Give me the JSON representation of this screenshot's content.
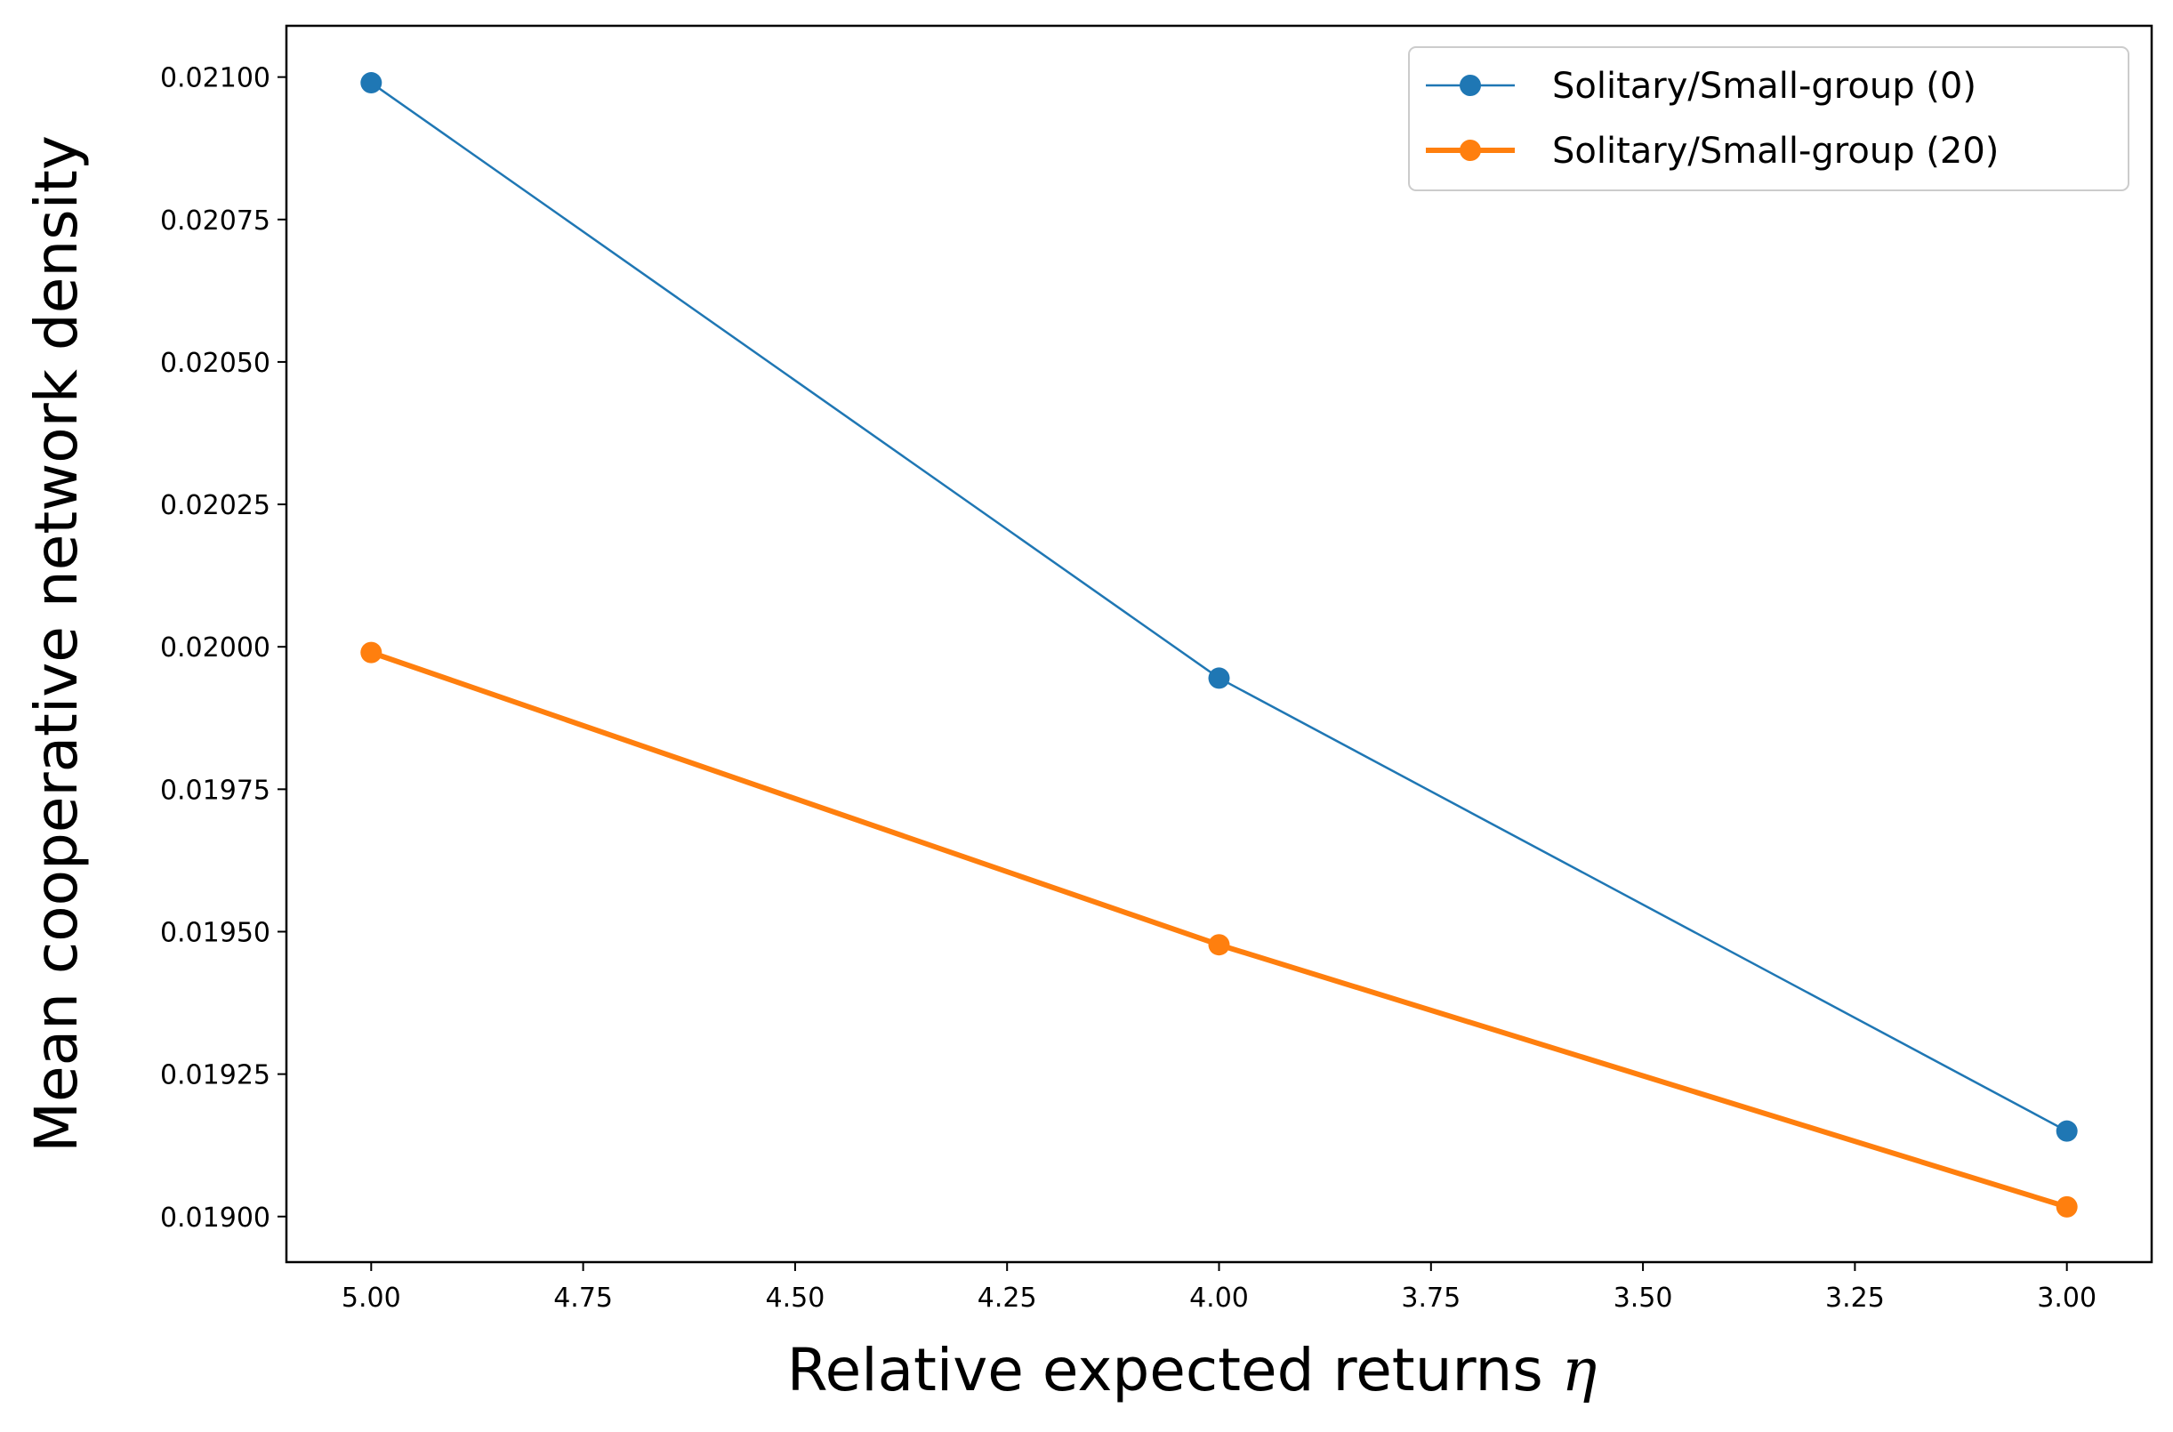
{
  "chart_data": {
    "type": "line",
    "xlabel": "Relative expected returns",
    "xlabel_symbol": "η",
    "ylabel": "Mean cooperative network density",
    "x": [
      5.0,
      4.0,
      3.0
    ],
    "xlim": [
      5.1,
      2.9
    ],
    "ylim": [
      0.01892,
      0.02109
    ],
    "xticks": [
      "5.00",
      "4.75",
      "4.50",
      "4.25",
      "4.00",
      "3.75",
      "3.50",
      "3.25",
      "3.00"
    ],
    "xtick_values": [
      5.0,
      4.75,
      4.5,
      4.25,
      4.0,
      3.75,
      3.5,
      3.25,
      3.0
    ],
    "yticks": [
      "0.01900",
      "0.01925",
      "0.01950",
      "0.01975",
      "0.02000",
      "0.02025",
      "0.02050",
      "0.02075",
      "0.02100"
    ],
    "ytick_values": [
      0.019,
      0.01925,
      0.0195,
      0.01975,
      0.02,
      0.02025,
      0.0205,
      0.02075,
      0.021
    ],
    "grid": false,
    "legend_position": "top-right",
    "series": [
      {
        "name": "Solitary/Small-group (0)",
        "values": [
          0.02099,
          0.019945,
          0.01915
        ],
        "color": "#1f77b4",
        "style": "thin"
      },
      {
        "name": "Solitary/Small-group (20)",
        "values": [
          0.01999,
          0.019477,
          0.019017
        ],
        "color": "#ff7f0e",
        "style": "thick"
      }
    ]
  }
}
